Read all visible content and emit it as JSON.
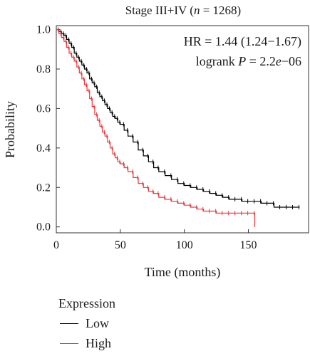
{
  "chart_data": {
    "type": "line",
    "subtype": "kaplan-meier",
    "title_parts": [
      "Stage III+IV (",
      "n",
      " = 1268)"
    ],
    "xlabel": "Time (months)",
    "ylabel": "Probability",
    "xlim": [
      0,
      197
    ],
    "ylim": [
      -0.03,
      1.02
    ],
    "xticks": [
      0,
      50,
      100,
      150
    ],
    "yticks": [
      0.0,
      0.2,
      0.4,
      0.6,
      0.8,
      1.0
    ],
    "ytick_labels": [
      "0.0",
      "0.2",
      "0.4",
      "0.6",
      "0.8",
      "1.0"
    ],
    "annotations": {
      "hr": "HR = 1.44 (1.24−1.67)",
      "logrank_prefix": "logrank ",
      "p_italic": "P",
      "p_eq": " = 2.2",
      "e_italic": "e",
      "p_suffix": "−06"
    },
    "legend": {
      "title": "Expression",
      "position": "bottom-left"
    },
    "series": [
      {
        "name": "Low",
        "color": "#000000",
        "x": [
          0,
          2,
          4,
          6,
          8,
          10,
          12,
          14,
          16,
          18,
          20,
          22,
          24,
          26,
          28,
          30,
          32,
          34,
          36,
          38,
          40,
          42,
          44,
          46,
          48,
          50,
          53,
          56,
          60,
          64,
          68,
          72,
          76,
          80,
          85,
          90,
          95,
          100,
          105,
          110,
          115,
          120,
          125,
          130,
          135,
          140,
          145,
          150,
          155,
          160,
          165,
          170,
          175,
          180,
          185,
          190
        ],
        "y": [
          1.0,
          0.99,
          0.98,
          0.97,
          0.95,
          0.93,
          0.91,
          0.88,
          0.86,
          0.84,
          0.82,
          0.8,
          0.78,
          0.75,
          0.73,
          0.71,
          0.68,
          0.66,
          0.64,
          0.62,
          0.6,
          0.58,
          0.56,
          0.55,
          0.53,
          0.52,
          0.49,
          0.46,
          0.43,
          0.39,
          0.36,
          0.33,
          0.3,
          0.28,
          0.26,
          0.24,
          0.22,
          0.21,
          0.2,
          0.19,
          0.18,
          0.17,
          0.16,
          0.15,
          0.14,
          0.14,
          0.13,
          0.13,
          0.13,
          0.12,
          0.12,
          0.1,
          0.1,
          0.1,
          0.1,
          0.1
        ]
      },
      {
        "name": "High",
        "color": "#e8383d",
        "x": [
          0,
          2,
          4,
          6,
          8,
          10,
          12,
          14,
          16,
          18,
          20,
          22,
          24,
          26,
          28,
          30,
          32,
          34,
          36,
          38,
          40,
          42,
          44,
          46,
          48,
          50,
          53,
          56,
          60,
          64,
          68,
          72,
          76,
          80,
          85,
          90,
          95,
          100,
          105,
          110,
          115,
          120,
          125,
          130,
          135,
          140,
          145,
          150,
          155
        ],
        "y": [
          1.0,
          0.98,
          0.96,
          0.94,
          0.91,
          0.88,
          0.86,
          0.84,
          0.81,
          0.78,
          0.75,
          0.72,
          0.69,
          0.65,
          0.61,
          0.57,
          0.54,
          0.51,
          0.48,
          0.46,
          0.43,
          0.4,
          0.37,
          0.35,
          0.33,
          0.32,
          0.3,
          0.28,
          0.25,
          0.22,
          0.2,
          0.18,
          0.17,
          0.15,
          0.14,
          0.13,
          0.12,
          0.11,
          0.1,
          0.09,
          0.08,
          0.08,
          0.07,
          0.07,
          0.07,
          0.07,
          0.07,
          0.07,
          0.0
        ]
      }
    ]
  }
}
